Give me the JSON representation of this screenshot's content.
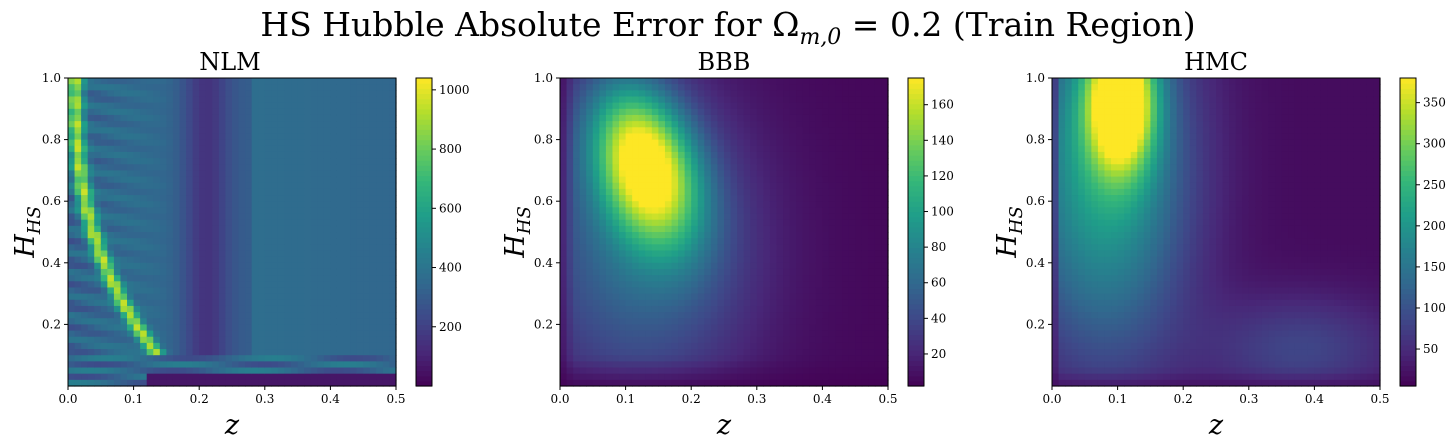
{
  "figure": {
    "title": "HS Hubble Absolute Error for Ω",
    "title_sub": "m,0",
    "title_rest": " = 0.2 (Train Region)"
  },
  "chart_data": [
    {
      "type": "heatmap",
      "title": "NLM",
      "xlabel": "z",
      "ylabel": "H",
      "ylabel_sub": "HS",
      "xlim": [
        0.0,
        0.5
      ],
      "ylim": [
        0.0,
        1.0
      ],
      "xticks": [
        "0.0",
        "0.1",
        "0.2",
        "0.3",
        "0.4",
        "0.5"
      ],
      "yticks": [
        "0.2",
        "0.4",
        "0.6",
        "0.8",
        "1.0"
      ],
      "colormap": "viridis",
      "colorbar_range": [
        0,
        1040
      ],
      "colorbar_ticks": [
        "200",
        "400",
        "600",
        "800",
        "1000"
      ],
      "field": "nlm"
    },
    {
      "type": "heatmap",
      "title": "BBB",
      "xlabel": "z",
      "ylabel": "H",
      "ylabel_sub": "HS",
      "xlim": [
        0.0,
        0.5
      ],
      "ylim": [
        0.0,
        1.0
      ],
      "xticks": [
        "0.0",
        "0.1",
        "0.2",
        "0.3",
        "0.4",
        "0.5"
      ],
      "yticks": [
        "0.2",
        "0.4",
        "0.6",
        "0.8",
        "1.0"
      ],
      "colormap": "viridis",
      "colorbar_range": [
        2,
        175
      ],
      "colorbar_ticks": [
        "20",
        "40",
        "60",
        "80",
        "100",
        "120",
        "140",
        "160"
      ],
      "field": "bbb"
    },
    {
      "type": "heatmap",
      "title": "HMC",
      "xlabel": "z",
      "ylabel": "H",
      "ylabel_sub": "HS",
      "xlim": [
        0.0,
        0.5
      ],
      "ylim": [
        0.0,
        1.0
      ],
      "xticks": [
        "0.0",
        "0.1",
        "0.2",
        "0.3",
        "0.4",
        "0.5"
      ],
      "yticks": [
        "0.2",
        "0.4",
        "0.6",
        "0.8",
        "1.0"
      ],
      "colormap": "viridis",
      "colorbar_range": [
        5,
        380
      ],
      "colorbar_ticks": [
        "50",
        "100",
        "150",
        "200",
        "250",
        "300",
        "350"
      ],
      "field": "hmc"
    }
  ]
}
